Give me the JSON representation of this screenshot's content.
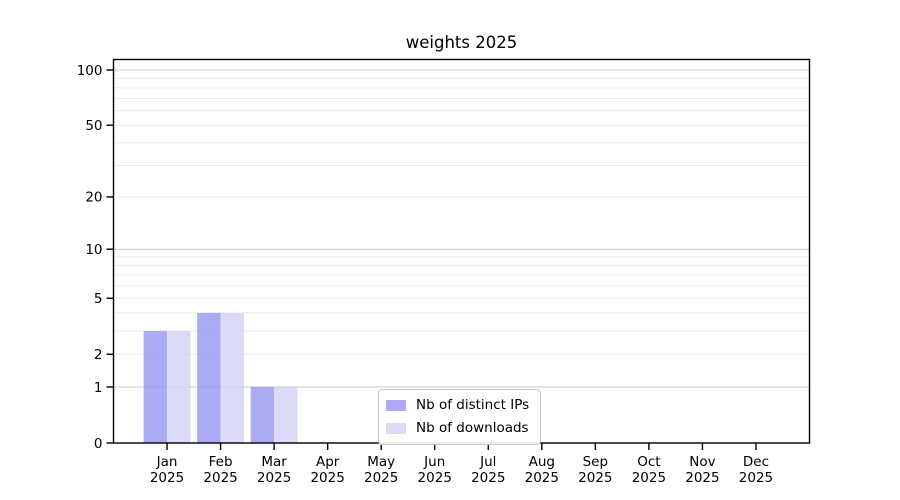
{
  "chart_data": {
    "type": "bar",
    "title": "weights 2025",
    "categories": [
      "Jan",
      "Feb",
      "Mar",
      "Apr",
      "May",
      "Jun",
      "Jul",
      "Aug",
      "Sep",
      "Oct",
      "Nov",
      "Dec"
    ],
    "year": "2025",
    "series": [
      {
        "name": "Nb of distinct IPs",
        "color": "#9595f2",
        "fill_opacity": 0.8,
        "values": [
          3,
          4,
          1,
          0,
          0,
          0,
          0,
          0,
          0,
          0,
          0,
          0
        ]
      },
      {
        "name": "Nb of downloads",
        "color": "#d2d2f5",
        "fill_opacity": 0.8,
        "values": [
          3,
          4,
          1,
          0,
          0,
          0,
          0,
          0,
          0,
          0,
          0,
          0
        ]
      }
    ],
    "yscale": "log1p",
    "ylim": [
      0,
      115
    ],
    "ytick_values": [
      0,
      1,
      2,
      5,
      10,
      20,
      50,
      100
    ],
    "ytick_labels": [
      "0",
      "1",
      "2",
      "5",
      "10",
      "20",
      "50",
      "100"
    ],
    "major_grid_values": [
      1,
      10,
      100
    ],
    "minor_grid_values": [
      2,
      3,
      4,
      5,
      6,
      7,
      8,
      9,
      20,
      30,
      40,
      50,
      60,
      70,
      80,
      90
    ],
    "grid": true,
    "legend_position": "lower center",
    "xlabel": "",
    "ylabel": ""
  },
  "legend": {
    "items": [
      {
        "label": "Nb of distinct IPs",
        "color": "#9595f2"
      },
      {
        "label": "Nb of downloads",
        "color": "#d2d2f5"
      }
    ]
  },
  "colors": {
    "background": "#ffffff",
    "spine": "#000000",
    "tick_text": "#000000",
    "major_grid": "#c9c9c9",
    "minor_grid": "#ebebeb",
    "legend_border": "#c9c9c9"
  }
}
